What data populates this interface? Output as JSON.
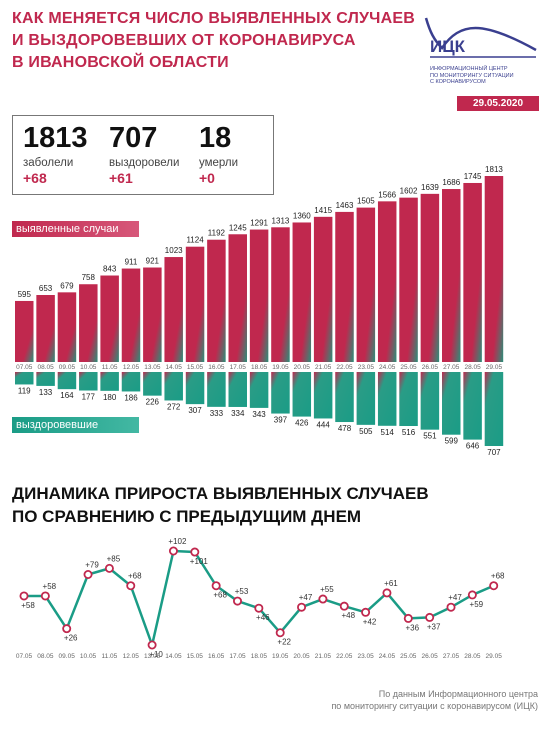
{
  "header": {
    "title_lines": [
      "Как меняется число выявленных случаев",
      "и выздоровевших от коронавируса",
      "в Ивановской области"
    ]
  },
  "logo": {
    "name": "ИЦК",
    "description_lines": [
      "Информационный центр",
      "по мониторингу ситуации",
      "с коронавирусом"
    ],
    "date": "29.05.2020"
  },
  "kpis": {
    "infected": {
      "value": "1813",
      "label": "заболели",
      "delta": "+68"
    },
    "recovered": {
      "value": "707",
      "label": "выздоровели",
      "delta": "+61"
    },
    "died": {
      "value": "18",
      "label": "умерли",
      "delta": "+0"
    }
  },
  "labels": {
    "cases": "выявленные случаи",
    "recovered": "выздоровевшие"
  },
  "chart2_title_lines": [
    "Динамика прироста выявленных случаев",
    "по сравнению с предыдущим днем"
  ],
  "footer_lines": [
    "По данным Информационного центра",
    "по мониторингу ситуации с коронавирусом (ИЦК)"
  ],
  "colors": {
    "cases": "#c0284e",
    "recovered": "#1a9c86",
    "line": "#1a9c86",
    "marker": "#c0284e"
  },
  "chart_data": [
    {
      "type": "bar",
      "categories": [
        "07.05",
        "08.05",
        "09.05",
        "10.05",
        "11.05",
        "12.05",
        "13.05",
        "14.05",
        "15.05",
        "16.05",
        "17.05",
        "18.05",
        "19.05",
        "20.05",
        "21.05",
        "22.05",
        "23.05",
        "24.05",
        "25.05",
        "26.05",
        "27.05",
        "28.05",
        "29.05"
      ],
      "series": [
        {
          "name": "выявленные случаи",
          "values": [
            595,
            653,
            679,
            758,
            843,
            911,
            921,
            1023,
            1124,
            1192,
            1245,
            1291,
            1313,
            1360,
            1415,
            1463,
            1505,
            1566,
            1602,
            1639,
            1686,
            1745,
            1813
          ]
        },
        {
          "name": "выздоровевшие",
          "values": [
            119,
            133,
            164,
            177,
            180,
            186,
            226,
            272,
            307,
            333,
            334,
            343,
            397,
            426,
            444,
            478,
            505,
            514,
            516,
            551,
            599,
            646,
            707
          ]
        }
      ]
    },
    {
      "type": "line",
      "title": "Динамика прироста выявленных случаев по сравнению с предыдущим днем",
      "x": [
        "07.05",
        "08.05",
        "09.05",
        "10.05",
        "11.05",
        "12.05",
        "13.05",
        "14.05",
        "15.05",
        "16.05",
        "17.05",
        "18.05",
        "19.05",
        "20.05",
        "21.05",
        "22.05",
        "23.05",
        "24.05",
        "25.05",
        "26.05",
        "27.05",
        "28.05",
        "29.05"
      ],
      "labels": [
        "+58",
        "+58",
        "+26",
        "+79",
        "+85",
        "+68",
        "+10",
        "+102",
        "+101",
        "+68",
        "+53",
        "+46",
        "+22",
        "+47",
        "+55",
        "+48",
        "+42",
        "+61",
        "+36",
        "+37",
        "+47",
        "+59",
        "+68"
      ],
      "values": [
        58,
        58,
        26,
        79,
        85,
        68,
        10,
        102,
        101,
        68,
        53,
        46,
        22,
        47,
        55,
        48,
        42,
        61,
        36,
        37,
        47,
        59,
        68
      ]
    }
  ]
}
